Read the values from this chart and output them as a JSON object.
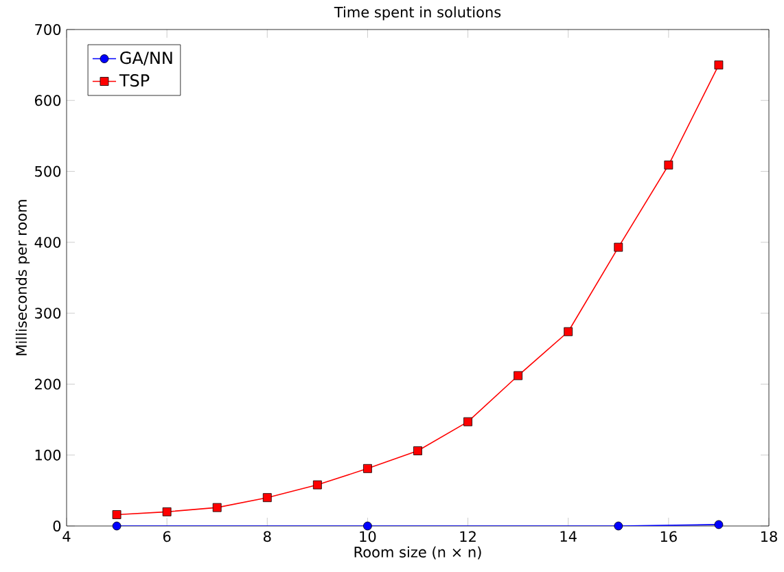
{
  "chart_data": {
    "type": "line",
    "title": "Time spent in solutions",
    "xlabel": "Room size (n × n)",
    "ylabel": "Milliseconds per room",
    "xlim": [
      4,
      18
    ],
    "xticks": [
      4,
      6,
      8,
      10,
      12,
      14,
      16,
      18
    ],
    "ylim": [
      0,
      700
    ],
    "yticks": [
      0,
      100,
      200,
      300,
      400,
      500,
      600,
      700
    ],
    "grid": false,
    "legend": "top left",
    "line_style": "solid",
    "series": [
      {
        "name": "GA/NN",
        "color": "#0000ff",
        "marker": "circle",
        "x": [
          5,
          10,
          15,
          17
        ],
        "values": [
          0,
          0,
          0,
          2
        ]
      },
      {
        "name": "TSP",
        "color": "#ff0000",
        "marker": "square",
        "x": [
          5,
          6,
          7,
          8,
          9,
          10,
          11,
          12,
          13,
          14,
          15,
          16,
          17
        ],
        "values": [
          16,
          20,
          26,
          40,
          58,
          81,
          106,
          147,
          212,
          274,
          393,
          509,
          650
        ]
      }
    ]
  }
}
